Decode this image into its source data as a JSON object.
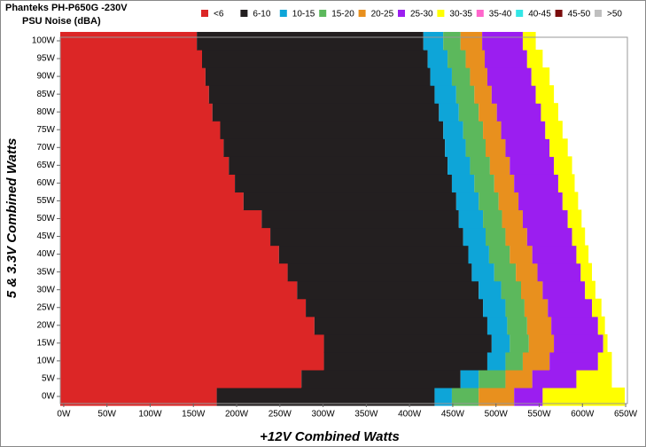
{
  "chart_data": {
    "type": "band-map",
    "title": "Phanteks PH-P650G -230V",
    "subtitle": "PSU Noise (dBA)",
    "x_label": "+12V Combined Watts",
    "y_label": "5 & 3.3V Combined Watts",
    "y": [
      0,
      5,
      10,
      15,
      20,
      25,
      30,
      35,
      40,
      45,
      50,
      55,
      60,
      65,
      70,
      75,
      80,
      85,
      90,
      95,
      100
    ],
    "xlim": [
      -4,
      652
    ],
    "ylim": [
      -2,
      101
    ],
    "xticks": [
      {
        "value": 0,
        "label": "0W"
      },
      {
        "value": 50,
        "label": "50W"
      },
      {
        "value": 100,
        "label": "100W"
      },
      {
        "value": 150,
        "label": "150W"
      },
      {
        "value": 200,
        "label": "200W"
      },
      {
        "value": 250,
        "label": "250W"
      },
      {
        "value": 300,
        "label": "300W"
      },
      {
        "value": 350,
        "label": "350W"
      },
      {
        "value": 400,
        "label": "400W"
      },
      {
        "value": 450,
        "label": "450W"
      },
      {
        "value": 500,
        "label": "500W"
      },
      {
        "value": 550,
        "label": "550W"
      },
      {
        "value": 600,
        "label": "600W"
      },
      {
        "value": 650,
        "label": "650W"
      }
    ],
    "yticks": [
      {
        "value": 0,
        "label": "0W"
      },
      {
        "value": 5,
        "label": "5W"
      },
      {
        "value": 10,
        "label": "10W"
      },
      {
        "value": 15,
        "label": "15W"
      },
      {
        "value": 20,
        "label": "20W"
      },
      {
        "value": 25,
        "label": "25W"
      },
      {
        "value": 30,
        "label": "30W"
      },
      {
        "value": 35,
        "label": "35W"
      },
      {
        "value": 40,
        "label": "40W"
      },
      {
        "value": 45,
        "label": "45W"
      },
      {
        "value": 50,
        "label": "50W"
      },
      {
        "value": 55,
        "label": "55W"
      },
      {
        "value": 60,
        "label": "60W"
      },
      {
        "value": 65,
        "label": "65W"
      },
      {
        "value": 70,
        "label": "70W"
      },
      {
        "value": 75,
        "label": "75W"
      },
      {
        "value": 80,
        "label": "80W"
      },
      {
        "value": 85,
        "label": "85W"
      },
      {
        "value": 90,
        "label": "90W"
      },
      {
        "value": 95,
        "label": "95W"
      },
      {
        "value": 100,
        "label": "100W"
      }
    ],
    "series": [
      {
        "name": "<6",
        "color": "#dc2626",
        "values": [
          177,
          275,
          301,
          301,
          290,
          280,
          270,
          259,
          249,
          239,
          229,
          208,
          198,
          191,
          185,
          181,
          172,
          168,
          164,
          160,
          154
        ]
      },
      {
        "name": "6-10",
        "color": "#231f20",
        "values": [
          429,
          459,
          490,
          495,
          490,
          485,
          480,
          472,
          468,
          462,
          457,
          454,
          449,
          444,
          441,
          439,
          434,
          429,
          424,
          421,
          416
        ]
      },
      {
        "name": "10-15",
        "color": "#0ea5d8",
        "values": [
          449,
          480,
          511,
          516,
          513,
          511,
          506,
          498,
          492,
          488,
          485,
          480,
          475,
          470,
          465,
          462,
          457,
          454,
          449,
          444,
          439
        ]
      },
      {
        "name": "15-20",
        "color": "#5cb85c",
        "values": [
          480,
          511,
          531,
          538,
          536,
          533,
          529,
          523,
          516,
          511,
          507,
          503,
          498,
          493,
          488,
          485,
          480,
          475,
          470,
          465,
          459
        ]
      },
      {
        "name": "20-25",
        "color": "#e8901e",
        "values": [
          521,
          542,
          562,
          567,
          564,
          560,
          554,
          548,
          542,
          536,
          531,
          526,
          521,
          516,
          511,
          506,
          501,
          495,
          490,
          487,
          484
        ]
      },
      {
        "name": "25-30",
        "color": "#9b1ef0",
        "values": [
          554,
          593,
          618,
          624,
          618,
          611,
          603,
          598,
          593,
          588,
          583,
          577,
          572,
          567,
          562,
          557,
          552,
          546,
          541,
          536,
          531
        ]
      },
      {
        "name": "30-35",
        "color": "#ffff00",
        "values": [
          649,
          634,
          634,
          629,
          626,
          622,
          615,
          611,
          607,
          603,
          599,
          595,
          591,
          588,
          583,
          577,
          572,
          567,
          562,
          554,
          546
        ]
      },
      {
        "name": "35-40",
        "color": "#ff66cc",
        "values": [
          null,
          null,
          null,
          null,
          null,
          null,
          null,
          null,
          null,
          null,
          null,
          null,
          null,
          null,
          null,
          null,
          null,
          null,
          null,
          null,
          null
        ]
      },
      {
        "name": "40-45",
        "color": "#33e6e6",
        "values": [
          null,
          null,
          null,
          null,
          null,
          null,
          null,
          null,
          null,
          null,
          null,
          null,
          null,
          null,
          null,
          null,
          null,
          null,
          null,
          null,
          null
        ]
      },
      {
        "name": "45-50",
        "color": "#7a0c0c",
        "values": [
          null,
          null,
          null,
          null,
          null,
          null,
          null,
          null,
          null,
          null,
          null,
          null,
          null,
          null,
          null,
          null,
          null,
          null,
          null,
          null,
          null
        ]
      },
      {
        "name": ">50",
        "color": "#bfbfbf",
        "values": [
          null,
          null,
          null,
          null,
          null,
          null,
          null,
          null,
          null,
          null,
          null,
          null,
          null,
          null,
          null,
          null,
          null,
          null,
          null,
          null,
          null
        ]
      }
    ]
  }
}
